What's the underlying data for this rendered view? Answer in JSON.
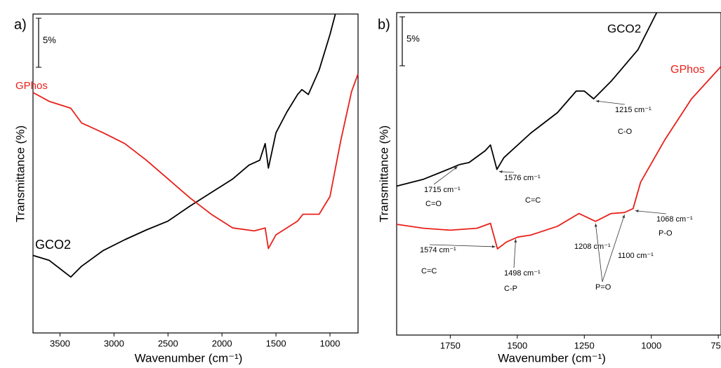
{
  "chart_data": [
    {
      "type": "line",
      "panel_label": "a)",
      "xlabel": "Wavenumber (cm⁻¹)",
      "ylabel": "Transmittance (%)",
      "xlim": [
        3750,
        740
      ],
      "xticks": [
        3500,
        3000,
        2500,
        2000,
        1500,
        1000
      ],
      "ylim": [
        0,
        32.5
      ],
      "scale_bar": {
        "value": 5,
        "label": "5%"
      },
      "x": [
        3750,
        3600,
        3400,
        3300,
        3100,
        2900,
        2700,
        2500,
        2300,
        2100,
        1900,
        1750,
        1650,
        1600,
        1570,
        1500,
        1400,
        1300,
        1260,
        1200,
        1100,
        1000,
        950
      ],
      "series": [
        {
          "name": "GCO2",
          "color": "#000000",
          "values": [
            7.9,
            7.4,
            5.7,
            6.8,
            8.4,
            9.5,
            10.5,
            11.4,
            12.9,
            14.3,
            15.7,
            17.1,
            17.6,
            19.3,
            16.8,
            20.4,
            22.5,
            24.3,
            24.8,
            24.3,
            26.8,
            30.4,
            32.5
          ]
        },
        {
          "name": "GPhos",
          "color": "#e8201a",
          "x": [
            3750,
            3600,
            3400,
            3300,
            3100,
            2900,
            2700,
            2500,
            2300,
            2100,
            1900,
            1700,
            1600,
            1570,
            1500,
            1300,
            1250,
            1100,
            1000,
            900,
            800,
            740
          ],
          "values": [
            24.5,
            23.6,
            22.9,
            21.4,
            20.4,
            19.3,
            17.6,
            15.7,
            13.8,
            12.1,
            10.7,
            10.4,
            10.7,
            8.6,
            10.0,
            11.4,
            12.1,
            12.1,
            13.9,
            19.6,
            24.6,
            26.4
          ]
        }
      ],
      "annotations": []
    },
    {
      "type": "line",
      "panel_label": "b)",
      "xlabel": "Wavenumber (cm⁻¹)",
      "ylabel": "Transmittance (%)",
      "xlim": [
        1950,
        740
      ],
      "xticks": [
        1750,
        1500,
        1250,
        1000,
        750
      ],
      "ylim": [
        0,
        32.9
      ],
      "scale_bar": {
        "value": 5,
        "label": "5%"
      },
      "x": [
        1950,
        1850,
        1750,
        1715,
        1680,
        1620,
        1600,
        1576,
        1550,
        1450,
        1350,
        1280,
        1250,
        1215,
        1150,
        1050,
        980
      ],
      "series": [
        {
          "name": "GCO2",
          "color": "#000000",
          "values": [
            15.2,
            15.9,
            17.0,
            17.4,
            17.6,
            18.8,
            19.4,
            16.9,
            18.1,
            20.6,
            22.7,
            24.9,
            24.9,
            24.1,
            25.9,
            29.1,
            32.9
          ]
        },
        {
          "name": "GPhos",
          "color": "#e8201a",
          "x": [
            1950,
            1850,
            1750,
            1650,
            1600,
            1574,
            1540,
            1498,
            1450,
            1350,
            1270,
            1208,
            1150,
            1100,
            1068,
            1040,
            950,
            850,
            740
          ],
          "values": [
            11.3,
            10.9,
            10.7,
            10.9,
            11.4,
            8.8,
            9.5,
            10.0,
            10.2,
            11.1,
            12.4,
            11.6,
            12.4,
            12.5,
            12.9,
            15.6,
            19.9,
            24.1,
            27.4
          ]
        }
      ],
      "annotations": [
        {
          "series": 0,
          "peaks": [
            1715
          ],
          "labels": [
            "1715 cm⁻¹"
          ],
          "bond": "C=O"
        },
        {
          "series": 0,
          "peaks": [
            1576
          ],
          "labels": [
            "1576 cm⁻¹"
          ],
          "bond": "C=C"
        },
        {
          "series": 0,
          "peaks": [
            1215
          ],
          "labels": [
            "1215 cm⁻¹"
          ],
          "bond": "C-O"
        },
        {
          "series": 1,
          "peaks": [
            1574
          ],
          "labels": [
            "1574 cm⁻¹"
          ],
          "bond": "C=C"
        },
        {
          "series": 1,
          "peaks": [
            1498
          ],
          "labels": [
            "1498 cm⁻¹"
          ],
          "bond": "C-P"
        },
        {
          "series": 1,
          "peaks": [
            1208,
            1100
          ],
          "labels": [
            "1208 cm⁻¹",
            "1100 cm⁻¹"
          ],
          "bond": "P=O"
        },
        {
          "series": 1,
          "peaks": [
            1068
          ],
          "labels": [
            "1068 cm⁻¹"
          ],
          "bond": "P-O"
        }
      ]
    }
  ]
}
